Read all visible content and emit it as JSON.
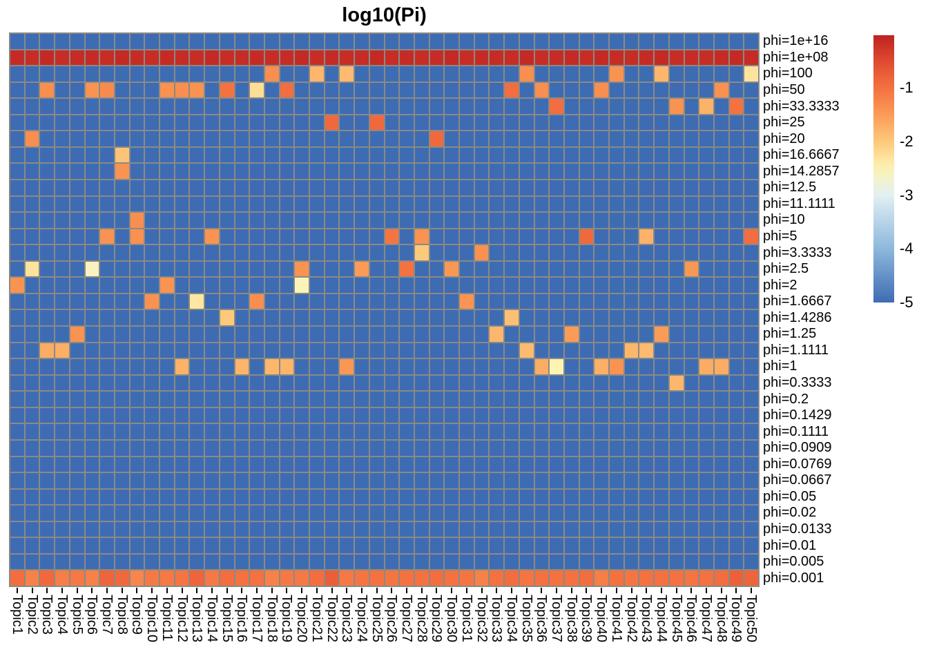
{
  "title": "log10(Pi)",
  "chart_data": {
    "type": "heatmap",
    "title": "log10(Pi)",
    "legend_position": "right",
    "grid_line_color": "#8a8a86",
    "value_range": [
      -5,
      0
    ],
    "default_value": -5,
    "columns": [
      "Topic1",
      "Topic2",
      "Topic3",
      "Topic4",
      "Topic5",
      "Topic6",
      "Topic7",
      "Topic8",
      "Topic9",
      "Topic10",
      "Topic11",
      "Topic12",
      "Topic13",
      "Topic14",
      "Topic15",
      "Topic16",
      "Topic17",
      "Topic18",
      "Topic19",
      "Topic20",
      "Topic21",
      "Topic22",
      "Topic23",
      "Topic24",
      "Topic25",
      "Topic26",
      "Topic27",
      "Topic28",
      "Topic29",
      "Topic30",
      "Topic31",
      "Topic32",
      "Topic33",
      "Topic34",
      "Topic35",
      "Topic36",
      "Topic37",
      "Topic38",
      "Topic39",
      "Topic40",
      "Topic41",
      "Topic42",
      "Topic43",
      "Topic44",
      "Topic45",
      "Topic46",
      "Topic47",
      "Topic48",
      "Topic49",
      "Topic50"
    ],
    "rows": [
      "phi=1e+16",
      "phi=1e+08",
      "phi=100",
      "phi=50",
      "phi=33.3333",
      "phi=25",
      "phi=20",
      "phi=16.6667",
      "phi=14.2857",
      "phi=12.5",
      "phi=11.1111",
      "phi=10",
      "phi=5",
      "phi=3.3333",
      "phi=2.5",
      "phi=2",
      "phi=1.6667",
      "phi=1.4286",
      "phi=1.25",
      "phi=1.1111",
      "phi=1",
      "phi=0.3333",
      "phi=0.2",
      "phi=0.1429",
      "phi=0.1111",
      "phi=0.0909",
      "phi=0.0769",
      "phi=0.0667",
      "phi=0.05",
      "phi=0.02",
      "phi=0.0133",
      "phi=0.01",
      "phi=0.005",
      "phi=0.001"
    ],
    "dense_rows": {
      "phi=1e+08": [
        -0.13,
        -0.15,
        -0.12,
        -0.16,
        -0.14,
        -0.13,
        -0.15,
        -0.12,
        -0.14,
        -0.16,
        -0.13,
        -0.14,
        -0.15,
        -0.12,
        -0.16,
        -0.14,
        -0.13,
        -0.15,
        -0.14,
        -0.12,
        -0.16,
        -0.13,
        -0.15,
        -0.14,
        -0.12,
        -0.15,
        -0.13,
        -0.16,
        -0.14,
        -0.12,
        -0.15,
        -0.13,
        -0.14,
        -0.16,
        -0.12,
        -0.15,
        -0.14,
        -0.13,
        -0.16,
        -0.12,
        -0.14,
        -0.15,
        -0.13,
        -0.12,
        -0.16,
        -0.14,
        -0.15,
        -0.13,
        -0.12,
        -0.14
      ],
      "phi=0.001": [
        -0.95,
        -1.2,
        -0.9,
        -1.15,
        -1.1,
        -1.2,
        -0.85,
        -0.9,
        -1.25,
        -1.1,
        -1.1,
        -1.05,
        -0.85,
        -1.1,
        -0.95,
        -1.0,
        -1.0,
        -1.2,
        -1.1,
        -1.1,
        -0.95,
        -0.75,
        -1.1,
        -1.05,
        -1.0,
        -1.05,
        -1.0,
        -1.0,
        -0.95,
        -1.0,
        -1.05,
        -1.2,
        -1.0,
        -0.95,
        -1.05,
        -1.0,
        -1.0,
        -1.0,
        -0.95,
        -1.15,
        -1.0,
        -1.05,
        -1.0,
        -1.0,
        -1.0,
        -1.05,
        -1.0,
        -0.95,
        -0.8,
        -0.85
      ]
    },
    "hot_cells": [
      {
        "r": 3,
        "c": 18,
        "v": -1.35
      },
      {
        "r": 3,
        "c": 21,
        "v": -1.8
      },
      {
        "r": 3,
        "c": 23,
        "v": -1.85
      },
      {
        "r": 3,
        "c": 35,
        "v": -1.35
      },
      {
        "r": 3,
        "c": 41,
        "v": -1.4
      },
      {
        "r": 3,
        "c": 44,
        "v": -1.8
      },
      {
        "r": 3,
        "c": 50,
        "v": -2.3
      },
      {
        "r": 4,
        "c": 3,
        "v": -1.35
      },
      {
        "r": 4,
        "c": 6,
        "v": -1.4
      },
      {
        "r": 4,
        "c": 7,
        "v": -1.3
      },
      {
        "r": 4,
        "c": 11,
        "v": -1.38
      },
      {
        "r": 4,
        "c": 12,
        "v": -1.35
      },
      {
        "r": 4,
        "c": 13,
        "v": -1.4
      },
      {
        "r": 4,
        "c": 15,
        "v": -1.0
      },
      {
        "r": 4,
        "c": 17,
        "v": -2.25
      },
      {
        "r": 4,
        "c": 19,
        "v": -0.95
      },
      {
        "r": 4,
        "c": 34,
        "v": -0.95
      },
      {
        "r": 4,
        "c": 36,
        "v": -1.35
      },
      {
        "r": 4,
        "c": 40,
        "v": -1.35
      },
      {
        "r": 4,
        "c": 48,
        "v": -1.38
      },
      {
        "r": 5,
        "c": 37,
        "v": -0.95
      },
      {
        "r": 5,
        "c": 45,
        "v": -1.4
      },
      {
        "r": 5,
        "c": 47,
        "v": -1.75
      },
      {
        "r": 5,
        "c": 49,
        "v": -1.0
      },
      {
        "r": 6,
        "c": 22,
        "v": -0.9
      },
      {
        "r": 6,
        "c": 25,
        "v": -0.9
      },
      {
        "r": 7,
        "c": 2,
        "v": -1.35
      },
      {
        "r": 7,
        "c": 29,
        "v": -0.9
      },
      {
        "r": 8,
        "c": 8,
        "v": -1.95
      },
      {
        "r": 9,
        "c": 8,
        "v": -1.4
      },
      {
        "r": 12,
        "c": 9,
        "v": -1.35
      },
      {
        "r": 13,
        "c": 7,
        "v": -1.4
      },
      {
        "r": 13,
        "c": 9,
        "v": -1.38
      },
      {
        "r": 13,
        "c": 14,
        "v": -1.4
      },
      {
        "r": 13,
        "c": 26,
        "v": -1.05
      },
      {
        "r": 13,
        "c": 28,
        "v": -1.4
      },
      {
        "r": 13,
        "c": 39,
        "v": -0.9
      },
      {
        "r": 13,
        "c": 43,
        "v": -1.75
      },
      {
        "r": 13,
        "c": 50,
        "v": -0.95
      },
      {
        "r": 14,
        "c": 28,
        "v": -2.0
      },
      {
        "r": 14,
        "c": 32,
        "v": -1.38
      },
      {
        "r": 15,
        "c": 2,
        "v": -2.3
      },
      {
        "r": 15,
        "c": 6,
        "v": -2.6
      },
      {
        "r": 15,
        "c": 20,
        "v": -1.4
      },
      {
        "r": 15,
        "c": 24,
        "v": -1.5
      },
      {
        "r": 15,
        "c": 27,
        "v": -1.0
      },
      {
        "r": 15,
        "c": 30,
        "v": -1.45
      },
      {
        "r": 15,
        "c": 46,
        "v": -1.45
      },
      {
        "r": 16,
        "c": 1,
        "v": -1.4
      },
      {
        "r": 16,
        "c": 11,
        "v": -1.42
      },
      {
        "r": 16,
        "c": 20,
        "v": -2.55
      },
      {
        "r": 17,
        "c": 10,
        "v": -1.38
      },
      {
        "r": 17,
        "c": 13,
        "v": -2.35
      },
      {
        "r": 17,
        "c": 17,
        "v": -1.36
      },
      {
        "r": 17,
        "c": 31,
        "v": -1.42
      },
      {
        "r": 18,
        "c": 15,
        "v": -2.0
      },
      {
        "r": 18,
        "c": 34,
        "v": -1.9
      },
      {
        "r": 19,
        "c": 5,
        "v": -1.4
      },
      {
        "r": 19,
        "c": 33,
        "v": -1.8
      },
      {
        "r": 19,
        "c": 38,
        "v": -1.5
      },
      {
        "r": 19,
        "c": 44,
        "v": -1.5
      },
      {
        "r": 20,
        "c": 3,
        "v": -1.7
      },
      {
        "r": 20,
        "c": 4,
        "v": -1.72
      },
      {
        "r": 20,
        "c": 35,
        "v": -1.85
      },
      {
        "r": 20,
        "c": 42,
        "v": -1.8
      },
      {
        "r": 20,
        "c": 43,
        "v": -1.85
      },
      {
        "r": 21,
        "c": 12,
        "v": -1.75
      },
      {
        "r": 21,
        "c": 16,
        "v": -1.78
      },
      {
        "r": 21,
        "c": 18,
        "v": -1.8
      },
      {
        "r": 21,
        "c": 19,
        "v": -1.78
      },
      {
        "r": 21,
        "c": 23,
        "v": -1.45
      },
      {
        "r": 21,
        "c": 36,
        "v": -1.7
      },
      {
        "r": 21,
        "c": 37,
        "v": -2.5
      },
      {
        "r": 21,
        "c": 40,
        "v": -1.72
      },
      {
        "r": 21,
        "c": 41,
        "v": -1.4
      },
      {
        "r": 21,
        "c": 47,
        "v": -1.68
      },
      {
        "r": 21,
        "c": 48,
        "v": -1.7
      },
      {
        "r": 22,
        "c": 45,
        "v": -1.8
      }
    ],
    "palette": {
      "name": "RdYlBu-reversed",
      "stops": [
        [
          0,
          "#3e6cb3"
        ],
        [
          0.2,
          "#8cb8dc"
        ],
        [
          0.4,
          "#e2f0f3"
        ],
        [
          0.5,
          "#fdf4b3"
        ],
        [
          0.6,
          "#fdc97b"
        ],
        [
          0.7,
          "#fa9b57"
        ],
        [
          0.8,
          "#f47140"
        ],
        [
          0.9,
          "#e04a31"
        ],
        [
          1,
          "#bb2020"
        ]
      ]
    },
    "colorbar": {
      "top_value": -0.02,
      "bottom_value": -5,
      "tick_values": [
        -1,
        -2,
        -3,
        -4,
        -5
      ],
      "tick_labels": [
        "-1",
        "-2",
        "-3",
        "-4",
        "-5"
      ]
    }
  }
}
